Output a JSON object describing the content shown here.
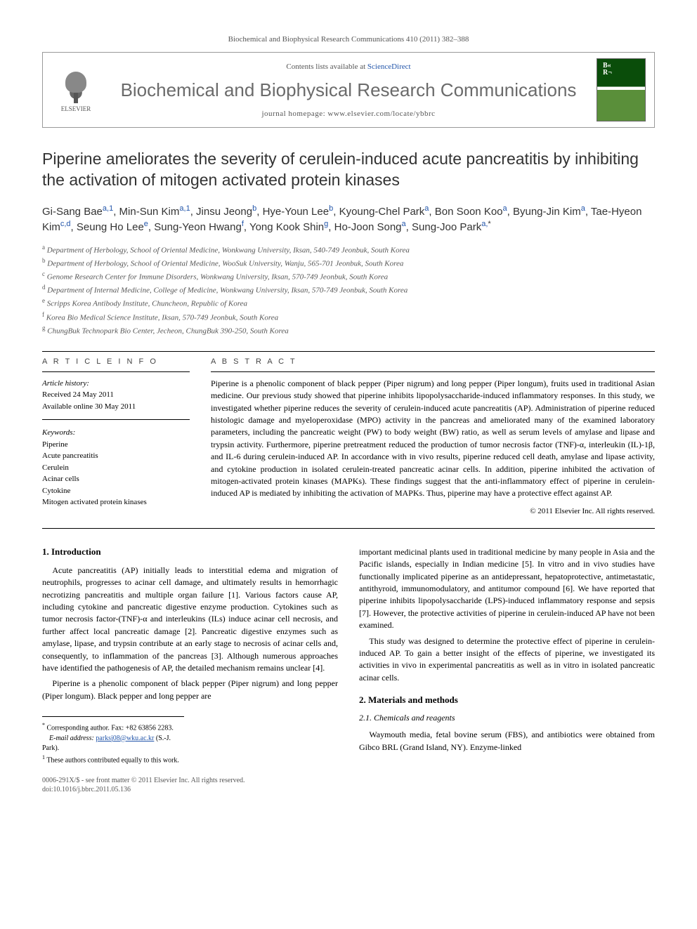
{
  "journal_ref": "Biochemical and Biophysical Research Communications 410 (2011) 382–388",
  "header": {
    "contents_prefix": "Contents lists available at ",
    "contents_link": "ScienceDirect",
    "journal_name": "Biochemical and Biophysical Research Communications",
    "homepage_prefix": "journal homepage: ",
    "homepage_url": "www.elsevier.com/locate/ybbrc",
    "publisher": "ELSEVIER"
  },
  "title": "Piperine ameliorates the severity of cerulein-induced acute pancreatitis by inhibiting the activation of mitogen activated protein kinases",
  "authors": [
    {
      "name": "Gi-Sang Bae",
      "aff": "a,1"
    },
    {
      "name": "Min-Sun Kim",
      "aff": "a,1"
    },
    {
      "name": "Jinsu Jeong",
      "aff": "b"
    },
    {
      "name": "Hye-Youn Lee",
      "aff": "b"
    },
    {
      "name": "Kyoung-Chel Park",
      "aff": "a"
    },
    {
      "name": "Bon Soon Koo",
      "aff": "a"
    },
    {
      "name": "Byung-Jin Kim",
      "aff": "a"
    },
    {
      "name": "Tae-Hyeon Kim",
      "aff": "c,d"
    },
    {
      "name": "Seung Ho Lee",
      "aff": "e"
    },
    {
      "name": "Sung-Yeon Hwang",
      "aff": "f"
    },
    {
      "name": "Yong Kook Shin",
      "aff": "g"
    },
    {
      "name": "Ho-Joon Song",
      "aff": "a"
    },
    {
      "name": "Sung-Joo Park",
      "aff": "a,",
      "corr": "*"
    }
  ],
  "affiliations": [
    {
      "l": "a",
      "t": "Department of Herbology, School of Oriental Medicine, Wonkwang University, Iksan, 540-749 Jeonbuk, South Korea"
    },
    {
      "l": "b",
      "t": "Department of Herbology, School of Oriental Medicine, WooSuk University, Wanju, 565-701 Jeonbuk, South Korea"
    },
    {
      "l": "c",
      "t": "Genome Research Center for Immune Disorders, Wonkwang University, Iksan, 570-749 Jeonbuk, South Korea"
    },
    {
      "l": "d",
      "t": "Department of Internal Medicine, College of Medicine, Wonkwang University, Iksan, 570-749 Jeonbuk, South Korea"
    },
    {
      "l": "e",
      "t": "Scripps Korea Antibody Institute, Chuncheon, Republic of Korea"
    },
    {
      "l": "f",
      "t": "Korea Bio Medical Science Institute, Iksan, 570-749 Jeonbuk, South Korea"
    },
    {
      "l": "g",
      "t": "ChungBuk Technopark Bio Center, Jecheon, ChungBuk 390-250, South Korea"
    }
  ],
  "article_info": {
    "heading": "A R T I C L E   I N F O",
    "history_label": "Article history:",
    "received": "Received 24 May 2011",
    "online": "Available online 30 May 2011",
    "keywords_label": "Keywords:",
    "keywords": [
      "Piperine",
      "Acute pancreatitis",
      "Cerulein",
      "Acinar cells",
      "Cytokine",
      "Mitogen activated protein kinases"
    ]
  },
  "abstract": {
    "heading": "A B S T R A C T",
    "text": "Piperine is a phenolic component of black pepper (Piper nigrum) and long pepper (Piper longum), fruits used in traditional Asian medicine. Our previous study showed that piperine inhibits lipopolysaccharide-induced inflammatory responses. In this study, we investigated whether piperine reduces the severity of cerulein-induced acute pancreatitis (AP). Administration of piperine reduced histologic damage and myeloperoxidase (MPO) activity in the pancreas and ameliorated many of the examined laboratory parameters, including the pancreatic weight (PW) to body weight (BW) ratio, as well as serum levels of amylase and lipase and trypsin activity. Furthermore, piperine pretreatment reduced the production of tumor necrosis factor (TNF)-α, interleukin (IL)-1β, and IL-6 during cerulein-induced AP. In accordance with in vivo results, piperine reduced cell death, amylase and lipase activity, and cytokine production in isolated cerulein-treated pancreatic acinar cells. In addition, piperine inhibited the activation of mitogen-activated protein kinases (MAPKs). These findings suggest that the anti-inflammatory effect of piperine in cerulein-induced AP is mediated by inhibiting the activation of MAPKs. Thus, piperine may have a protective effect against AP.",
    "copyright": "© 2011 Elsevier Inc. All rights reserved."
  },
  "sections": {
    "s1_heading": "1. Introduction",
    "s1_p1": "Acute pancreatitis (AP) initially leads to interstitial edema and migration of neutrophils, progresses to acinar cell damage, and ultimately results in hemorrhagic necrotizing pancreatitis and multiple organ failure [1]. Various factors cause AP, including cytokine and pancreatic digestive enzyme production. Cytokines such as tumor necrosis factor-(TNF)-α and interleukins (ILs) induce acinar cell necrosis, and further affect local pancreatic damage [2]. Pancreatic digestive enzymes such as amylase, lipase, and trypsin contribute at an early stage to necrosis of acinar cells and, consequently, to inflammation of the pancreas [3]. Although numerous approaches have identified the pathogenesis of AP, the detailed mechanism remains unclear [4].",
    "s1_p2": "Piperine is a phenolic component of black pepper (Piper nigrum) and long pepper (Piper longum). Black pepper and long pepper are",
    "s1_p3": "important medicinal plants used in traditional medicine by many people in Asia and the Pacific islands, especially in Indian medicine [5]. In vitro and in vivo studies have functionally implicated piperine as an antidepressant, hepatoprotective, antimetastatic, antithyroid, immunomodulatory, and antitumor compound [6]. We have reported that piperine inhibits lipopolysaccharide (LPS)-induced inflammatory response and sepsis [7]. However, the protective activities of piperine in cerulein-induced AP have not been examined.",
    "s1_p4": "This study was designed to determine the protective effect of piperine in cerulein-induced AP. To gain a better insight of the effects of piperine, we investigated its activities in vivo in experimental pancreatitis as well as in vitro in isolated pancreatic acinar cells.",
    "s2_heading": "2. Materials and methods",
    "s2_1_heading": "2.1. Chemicals and reagents",
    "s2_1_p1": "Waymouth media, fetal bovine serum (FBS), and antibiotics were obtained from Gibco BRL (Grand Island, NY). Enzyme-linked"
  },
  "footnotes": {
    "corr": "Corresponding author. Fax: +82 63856 2283.",
    "email_label": "E-mail address:",
    "email": "parksj08@wku.ac.kr",
    "email_suffix": "(S.-J. Park).",
    "equal": "These authors contributed equally to this work."
  },
  "footer": {
    "l1": "0006-291X/$ - see front matter © 2011 Elsevier Inc. All rights reserved.",
    "l2": "doi:10.1016/j.bbrc.2011.05.136"
  },
  "colors": {
    "link": "#2255aa",
    "text": "#000000",
    "muted": "#555555",
    "journal_name": "#6b6b6b"
  }
}
